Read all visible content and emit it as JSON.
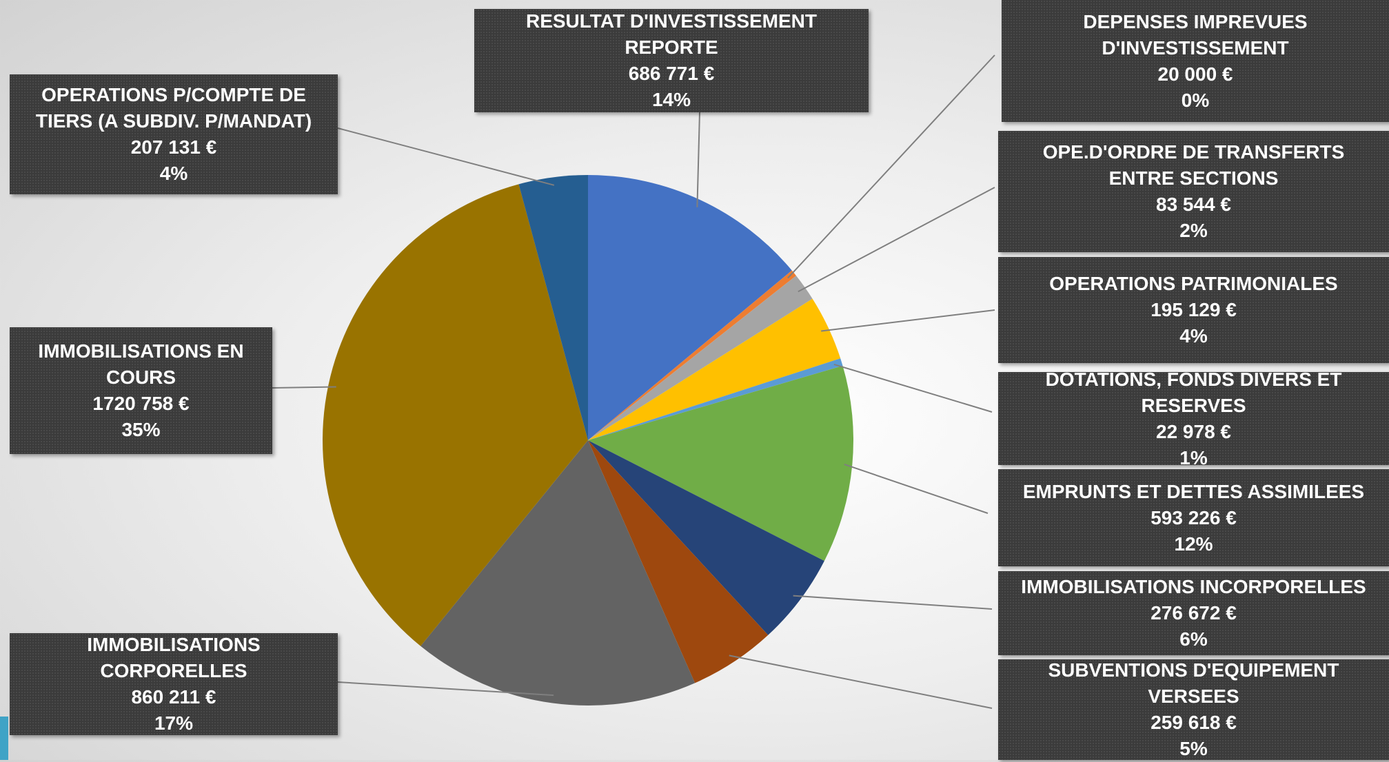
{
  "chart_data": {
    "type": "pie",
    "categories": [
      "RESULTAT D'INVESTISSEMENT REPORTE",
      "DEPENSES IMPREVUES D'INVESTISSEMENT",
      "OPE.D'ORDRE DE TRANSFERTS ENTRE SECTIONS",
      "OPERATIONS PATRIMONIALES",
      "DOTATIONS, FONDS DIVERS ET RESERVES",
      "EMPRUNTS ET DETTES ASSIMILEES",
      "IMMOBILISATIONS INCORPORELLES",
      "SUBVENTIONS D'EQUIPEMENT VERSEES",
      "IMMOBILISATIONS CORPORELLES",
      "IMMOBILISATIONS EN COURS",
      "OPERATIONS P/COMPTE DE TIERS (A SUBDIV. P/MANDAT)"
    ],
    "values": [
      686771,
      20000,
      83544,
      195129,
      22978,
      593226,
      276672,
      259618,
      860211,
      1720758,
      207131
    ],
    "value_labels": [
      "686 771 €",
      "20 000 €",
      "83 544 €",
      "195 129 €",
      "22 978 €",
      "593 226 €",
      "276 672 €",
      "259 618 €",
      "860 211 €",
      "1720 758 €",
      "207 131 €"
    ],
    "percent_labels": [
      "14%",
      "0%",
      "2%",
      "4%",
      "1%",
      "12%",
      "6%",
      "5%",
      "17%",
      "35%",
      "4%"
    ],
    "colors": [
      "#4472c4",
      "#ed7d31",
      "#a5a5a5",
      "#ffc000",
      "#5b9bd5",
      "#70ad47",
      "#264478",
      "#9e480e",
      "#636363",
      "#997300",
      "#255e91"
    ]
  }
}
